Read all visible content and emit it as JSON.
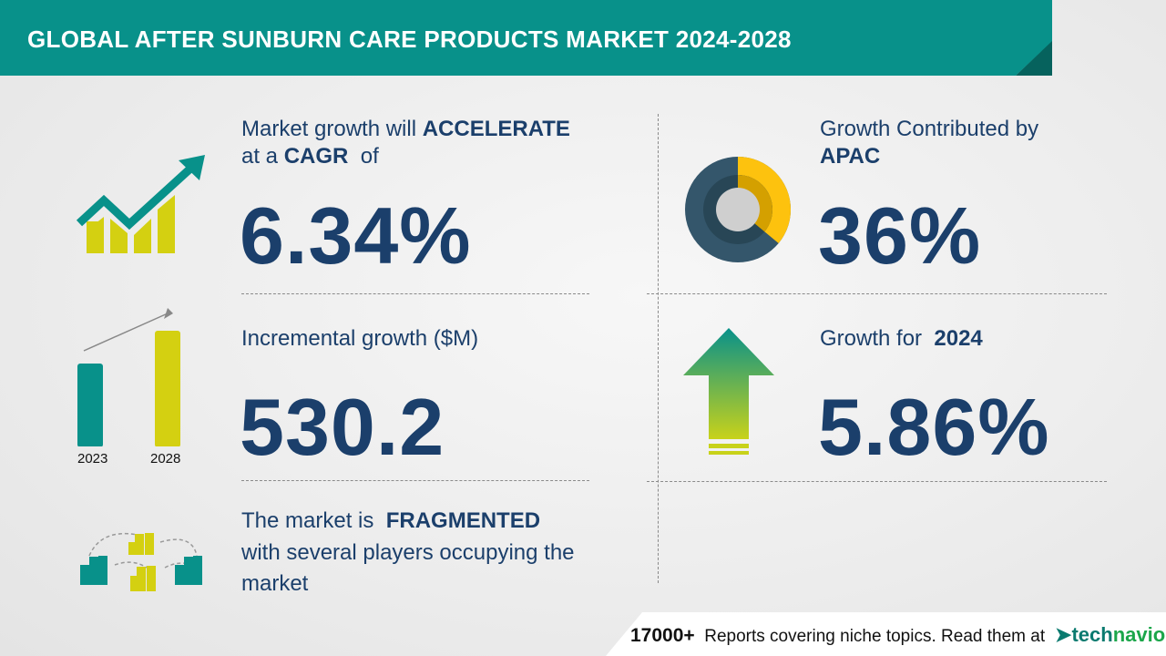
{
  "header": {
    "title": "GLOBAL AFTER SUNBURN CARE PRODUCTS MARKET 2024-2028"
  },
  "cagr": {
    "line1_prefix": "Market growth will",
    "line1_bold": "ACCELERATE",
    "line2_prefix": "at a",
    "line2_bold": "CAGR",
    "line2_suffix": "of",
    "value": "6.34%",
    "icon": "trend-up-bar-chart-icon"
  },
  "incremental": {
    "label": "Incremental growth ($M)",
    "value": "530.2",
    "bar_years": [
      "2023",
      "2028"
    ],
    "icon": "bar-comparison-icon"
  },
  "market": {
    "prefix": "The market is",
    "bold": "FRAGMENTED",
    "line2": "with several players occupying the",
    "line3": "market",
    "icon": "buildings-network-icon"
  },
  "region": {
    "label": "Growth Contributed by",
    "region": "APAC",
    "value": "36%",
    "share": 36,
    "icon": "donut-chart-icon"
  },
  "yoy": {
    "label": "Growth for",
    "year": "2024",
    "value": "5.86%",
    "icon": "up-arrow-icon"
  },
  "footer": {
    "count": "17000+",
    "text": "Reports covering niche topics. Read them at",
    "logo_a": "tech",
    "logo_b": "navio"
  },
  "colors": {
    "teal": "#08918a",
    "yellow_green": "#d4d011",
    "navy": "#1b3f6b",
    "donut_yellow": "#fdc20e",
    "donut_slate": "#34566b"
  }
}
